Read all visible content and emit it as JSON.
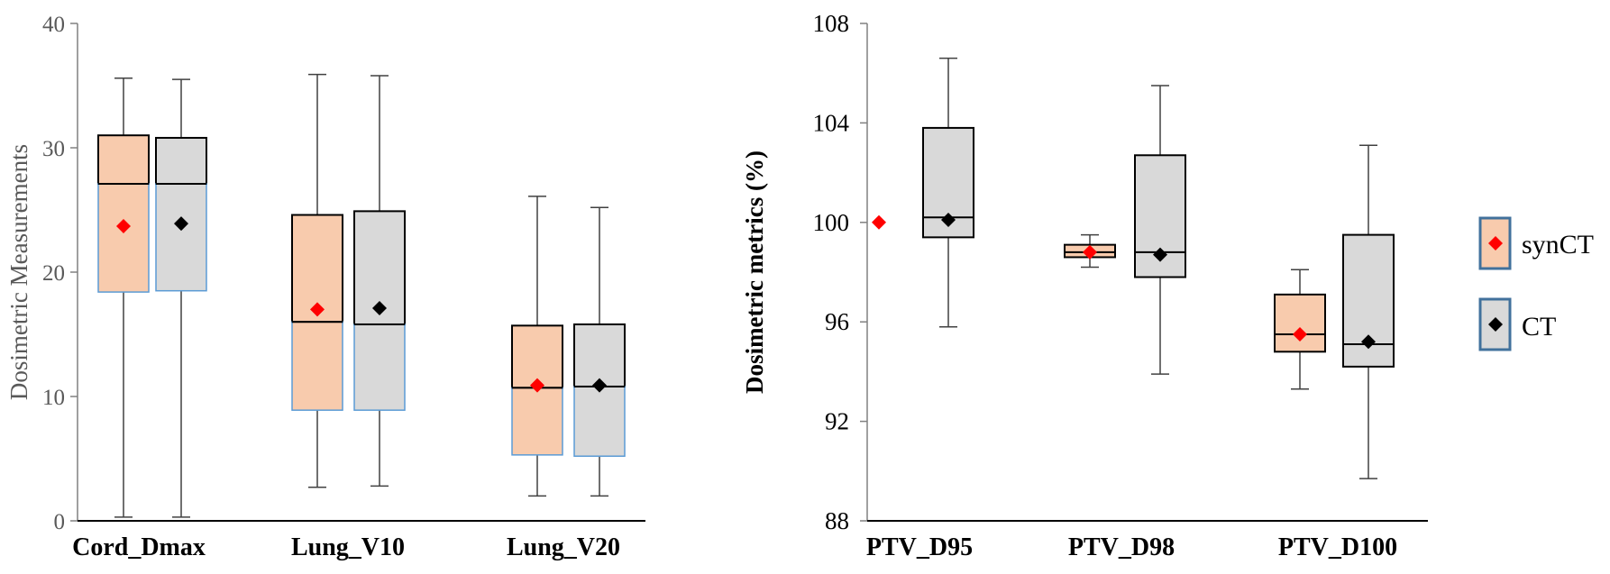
{
  "chart_data": [
    {
      "type": "box",
      "title": "",
      "ylabel": "Dosimetric Measurements",
      "ylim": [
        0,
        40
      ],
      "yticks": [
        "0",
        "10",
        "20",
        "30",
        "40"
      ],
      "categories": [
        "Cord_Dmax",
        "Lung_V10",
        "Lung_V20"
      ],
      "series": [
        {
          "name": "synCT",
          "boxes": [
            {
              "min": 0.3,
              "q1": 18.4,
              "median": 27.1,
              "q3": 31.0,
              "max": 35.6,
              "mean": 23.7
            },
            {
              "min": 2.7,
              "q1": 8.9,
              "median": 16.0,
              "q3": 24.6,
              "max": 35.9,
              "mean": 17.0
            },
            {
              "min": 2.0,
              "q1": 5.3,
              "median": 10.7,
              "q3": 15.7,
              "max": 26.1,
              "mean": 10.9
            }
          ]
        },
        {
          "name": "CT",
          "boxes": [
            {
              "min": 0.3,
              "q1": 18.5,
              "median": 27.1,
              "q3": 30.8,
              "max": 35.5,
              "mean": 23.9
            },
            {
              "min": 2.8,
              "q1": 8.9,
              "median": 15.8,
              "q3": 24.9,
              "max": 35.8,
              "mean": 17.1
            },
            {
              "min": 2.0,
              "q1": 5.2,
              "median": 10.8,
              "q3": 15.8,
              "max": 25.2,
              "mean": 10.9
            }
          ]
        }
      ]
    },
    {
      "type": "box",
      "title": "",
      "ylabel": "Dosimetric metrics (%)",
      "ylim": [
        88,
        108
      ],
      "yticks": [
        "88",
        "92",
        "96",
        "100",
        "104",
        "108"
      ],
      "categories": [
        "PTV_D95",
        "PTV_D98",
        "PTV_D100"
      ],
      "series": [
        {
          "name": "synCT",
          "boxes": [
            {
              "min": 100.0,
              "q1": 100.0,
              "median": 100.0,
              "q3": 100.0,
              "max": 100.0,
              "mean": 100.0
            },
            {
              "min": 98.2,
              "q1": 98.6,
              "median": 98.8,
              "q3": 99.1,
              "max": 99.5,
              "mean": 98.8
            },
            {
              "min": 93.3,
              "q1": 94.8,
              "median": 95.5,
              "q3": 97.1,
              "max": 98.1,
              "mean": 95.5
            }
          ]
        },
        {
          "name": "CT",
          "boxes": [
            {
              "min": 95.8,
              "q1": 99.4,
              "median": 100.2,
              "q3": 103.8,
              "max": 106.6,
              "mean": 100.1
            },
            {
              "min": 93.9,
              "q1": 97.8,
              "median": 98.8,
              "q3": 102.7,
              "max": 105.5,
              "mean": 98.7
            },
            {
              "min": 89.7,
              "q1": 94.2,
              "median": 95.1,
              "q3": 99.5,
              "max": 103.1,
              "mean": 95.2
            }
          ]
        }
      ]
    }
  ],
  "legend": {
    "items": [
      {
        "label": "synCT",
        "fill": "#f8cbad",
        "marker": "#ff0000"
      },
      {
        "label": "CT",
        "fill": "#d9d9d9",
        "marker": "#000000"
      }
    ]
  },
  "colors": {
    "synCT_fill": "#f8cbad",
    "CT_fill": "#d9d9d9",
    "synCT_marker": "#ff0000",
    "CT_marker": "#000000",
    "lower_box_border": "#5b9bd5",
    "legend_border": "#41719c"
  }
}
